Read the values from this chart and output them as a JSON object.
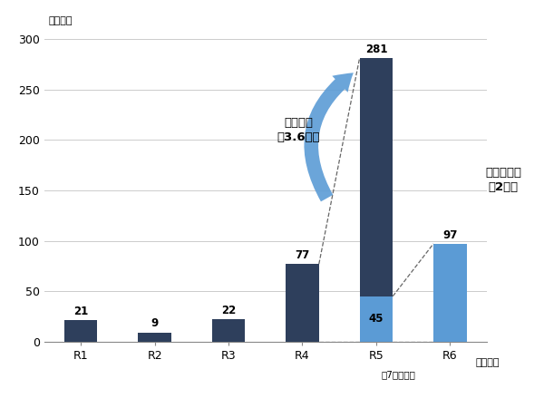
{
  "categories": [
    "R1",
    "R2",
    "R3",
    "R4",
    "R5",
    "R6"
  ],
  "dark_values": [
    21,
    9,
    22,
    77,
    281,
    0
  ],
  "light_values": [
    0,
    0,
    0,
    0,
    45,
    97
  ],
  "dark_color": "#2e3f5c",
  "light_color": "#5b9bd5",
  "ylabel": "（件数）",
  "xlabel_note": "（年度）",
  "footnote": "。7月末現在",
  "ylim": [
    0,
    310
  ],
  "yticks": [
    0,
    50,
    100,
    150,
    200,
    250,
    300
  ],
  "annotation1_line1": "前年度の",
  "annotation1_line2": "祰3.6倍！",
  "annotation2_line1": "前年同期の",
  "annotation2_line2": "祰2倍！",
  "background_color": "#ffffff",
  "grid_color": "#cccccc",
  "bar_width": 0.45
}
